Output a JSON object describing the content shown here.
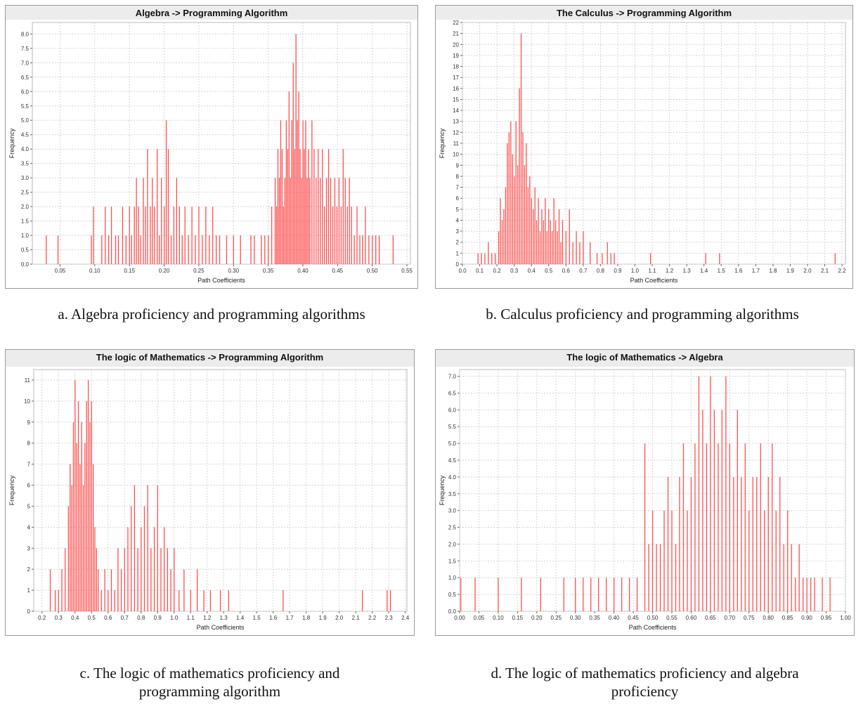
{
  "chart_data": [
    {
      "type": "bar",
      "title": "Algebra -> Programming Algorithm",
      "xlabel": "Path Coefficients",
      "ylabel": "Frequency",
      "xlim": [
        0.01,
        0.555
      ],
      "ylim": [
        0,
        8.4
      ],
      "grid": true,
      "bar_color": "#ff5050",
      "x_ticks": [
        "0.05",
        "0.10",
        "0.15",
        "0.20",
        "0.25",
        "0.30",
        "0.35",
        "0.40",
        "0.45",
        "0.50",
        "0.55"
      ],
      "y_ticks": [
        "0.0",
        "0.5",
        "1.0",
        "1.5",
        "2.0",
        "2.5",
        "3.0",
        "3.5",
        "4.0",
        "4.5",
        "5.0",
        "5.5",
        "6.0",
        "6.5",
        "7.0",
        "7.5",
        "8.0"
      ],
      "x": [
        0.03,
        0.047,
        0.095,
        0.098,
        0.11,
        0.115,
        0.12,
        0.124,
        0.13,
        0.134,
        0.14,
        0.145,
        0.15,
        0.153,
        0.157,
        0.16,
        0.163,
        0.166,
        0.17,
        0.173,
        0.176,
        0.18,
        0.183,
        0.186,
        0.19,
        0.193,
        0.196,
        0.2,
        0.203,
        0.206,
        0.21,
        0.214,
        0.218,
        0.222,
        0.226,
        0.23,
        0.235,
        0.24,
        0.245,
        0.25,
        0.255,
        0.26,
        0.265,
        0.27,
        0.275,
        0.28,
        0.29,
        0.3,
        0.31,
        0.325,
        0.33,
        0.34,
        0.345,
        0.35,
        0.355,
        0.36,
        0.362,
        0.364,
        0.366,
        0.368,
        0.37,
        0.372,
        0.374,
        0.376,
        0.378,
        0.38,
        0.382,
        0.384,
        0.386,
        0.388,
        0.39,
        0.392,
        0.394,
        0.396,
        0.398,
        0.4,
        0.402,
        0.404,
        0.406,
        0.408,
        0.41,
        0.413,
        0.416,
        0.419,
        0.422,
        0.425,
        0.428,
        0.431,
        0.434,
        0.437,
        0.44,
        0.443,
        0.446,
        0.449,
        0.452,
        0.455,
        0.458,
        0.461,
        0.464,
        0.467,
        0.47,
        0.474,
        0.478,
        0.482,
        0.486,
        0.49,
        0.495,
        0.5,
        0.505,
        0.51,
        0.53
      ],
      "values": [
        1,
        1,
        1,
        2,
        1,
        2,
        1,
        2,
        1,
        1,
        2,
        1,
        2,
        1,
        2,
        3,
        2,
        1,
        3,
        2,
        4,
        2,
        3,
        2,
        4,
        1,
        3,
        2,
        5,
        4,
        1,
        2,
        3,
        2,
        1,
        2,
        1,
        2,
        1,
        2,
        1,
        2,
        1,
        2,
        1,
        1,
        1,
        1,
        1,
        1,
        1,
        1,
        1,
        1,
        2,
        3,
        2,
        4,
        3,
        5,
        4,
        2,
        3,
        5,
        4,
        6,
        3,
        5,
        7,
        4,
        8,
        5,
        6,
        4,
        3,
        5,
        4,
        5,
        3,
        4,
        3,
        5,
        4,
        3,
        4,
        3,
        4,
        2,
        3,
        4,
        3,
        2,
        3,
        2,
        3,
        2,
        4,
        3,
        2,
        3,
        2,
        1,
        2,
        1,
        1,
        2,
        1,
        1,
        1,
        1,
        1
      ]
    },
    {
      "type": "bar",
      "title": "The Calculus  -> Programming Algorithm",
      "xlabel": "Path Coefficients",
      "ylabel": "Frequency",
      "xlim": [
        0,
        2.22
      ],
      "ylim": [
        0,
        22
      ],
      "grid": true,
      "bar_color": "#ff5050",
      "x_ticks": [
        "0.0",
        "0.1",
        "0.2",
        "0.3",
        "0.4",
        "0.5",
        "0.6",
        "0.7",
        "0.8",
        "0.9",
        "1.0",
        "1.1",
        "1.2",
        "1.3",
        "1.4",
        "1.5",
        "1.6",
        "1.7",
        "1.8",
        "1.9",
        "2.0",
        "2.1",
        "2.2"
      ],
      "y_ticks": [
        "0",
        "1",
        "2",
        "3",
        "4",
        "5",
        "6",
        "7",
        "8",
        "9",
        "10",
        "11",
        "12",
        "13",
        "14",
        "15",
        "16",
        "17",
        "18",
        "19",
        "20",
        "21",
        "22"
      ],
      "x": [
        0.09,
        0.11,
        0.13,
        0.15,
        0.17,
        0.19,
        0.21,
        0.22,
        0.23,
        0.24,
        0.25,
        0.26,
        0.27,
        0.28,
        0.29,
        0.3,
        0.31,
        0.32,
        0.33,
        0.34,
        0.35,
        0.36,
        0.37,
        0.38,
        0.39,
        0.4,
        0.41,
        0.42,
        0.43,
        0.44,
        0.45,
        0.46,
        0.47,
        0.48,
        0.49,
        0.5,
        0.51,
        0.52,
        0.53,
        0.54,
        0.55,
        0.56,
        0.57,
        0.58,
        0.6,
        0.62,
        0.64,
        0.66,
        0.68,
        0.7,
        0.74,
        0.78,
        0.81,
        0.84,
        0.86,
        0.88,
        1.09,
        1.41,
        1.49,
        2.16
      ],
      "values": [
        1,
        1,
        1,
        2,
        1,
        1,
        3,
        6,
        4,
        5,
        7,
        11,
        12,
        13,
        10,
        8,
        13,
        9,
        16,
        21,
        12,
        9,
        11,
        7,
        8,
        6,
        5,
        7,
        4,
        6,
        3,
        5,
        4,
        6,
        3,
        5,
        4,
        3,
        6,
        4,
        3,
        5,
        2,
        4,
        3,
        5,
        2,
        3,
        2,
        3,
        2,
        1,
        1,
        2,
        1,
        1,
        1,
        1,
        1,
        1
      ]
    },
    {
      "type": "bar",
      "title": "The logic of Mathematics -> Programming Algorithm",
      "xlabel": "Path Coefficients",
      "ylabel": "Frequency",
      "xlim": [
        0.15,
        2.41
      ],
      "ylim": [
        0,
        11.5
      ],
      "grid": true,
      "bar_color": "#ff5050",
      "x_ticks": [
        "0.2",
        "0.3",
        "0.4",
        "0.5",
        "0.6",
        "0.7",
        "0.8",
        "0.9",
        "1.0",
        "1.1",
        "1.2",
        "1.3",
        "1.4",
        "1.5",
        "1.6",
        "1.7",
        "1.8",
        "1.9",
        "2.0",
        "2.1",
        "2.2",
        "2.3",
        "2.4"
      ],
      "y_ticks": [
        "0",
        "1",
        "2",
        "3",
        "4",
        "5",
        "6",
        "7",
        "8",
        "9",
        "10",
        "11"
      ],
      "x": [
        0.25,
        0.28,
        0.3,
        0.32,
        0.34,
        0.36,
        0.37,
        0.38,
        0.39,
        0.4,
        0.41,
        0.42,
        0.43,
        0.44,
        0.45,
        0.46,
        0.47,
        0.48,
        0.49,
        0.5,
        0.51,
        0.52,
        0.53,
        0.54,
        0.56,
        0.58,
        0.6,
        0.62,
        0.64,
        0.66,
        0.68,
        0.7,
        0.72,
        0.74,
        0.76,
        0.78,
        0.8,
        0.82,
        0.84,
        0.86,
        0.88,
        0.9,
        0.92,
        0.94,
        0.96,
        0.98,
        1.0,
        1.03,
        1.06,
        1.1,
        1.14,
        1.18,
        1.22,
        1.28,
        1.33,
        1.66,
        2.14,
        2.29,
        2.31
      ],
      "values": [
        2,
        1,
        1,
        2,
        3,
        5,
        7,
        6,
        9,
        11,
        8,
        10,
        7,
        9,
        6,
        8,
        10,
        11,
        9,
        10,
        7,
        4,
        3,
        2,
        1,
        2,
        1,
        2,
        1,
        3,
        2,
        3,
        4,
        5,
        6,
        3,
        4,
        5,
        6,
        3,
        4,
        6,
        3,
        4,
        3,
        2,
        3,
        1,
        2,
        1,
        2,
        1,
        1,
        1,
        1,
        1,
        1,
        1,
        1
      ]
    },
    {
      "type": "bar",
      "title": "The logic of Mathematics -> Algebra",
      "xlabel": "Path Coefficients",
      "ylabel": "Frequency",
      "xlim": [
        0,
        1.0
      ],
      "ylim": [
        0,
        7.2
      ],
      "grid": true,
      "bar_color": "#ff5050",
      "x_ticks": [
        "0.00",
        "0.05",
        "0.10",
        "0.15",
        "0.20",
        "0.25",
        "0.30",
        "0.35",
        "0.40",
        "0.45",
        "0.50",
        "0.55",
        "0.60",
        "0.65",
        "0.70",
        "0.75",
        "0.80",
        "0.85",
        "0.90",
        "0.95",
        "1.00"
      ],
      "y_ticks": [
        "0.0",
        "0.5",
        "1.0",
        "1.5",
        "2.0",
        "2.5",
        "3.0",
        "3.5",
        "4.0",
        "4.5",
        "5.0",
        "5.5",
        "6.0",
        "6.5",
        "7.0"
      ],
      "x": [
        0.003,
        0.04,
        0.1,
        0.16,
        0.21,
        0.27,
        0.3,
        0.32,
        0.34,
        0.36,
        0.38,
        0.4,
        0.42,
        0.44,
        0.46,
        0.48,
        0.49,
        0.5,
        0.51,
        0.52,
        0.53,
        0.54,
        0.55,
        0.56,
        0.57,
        0.58,
        0.59,
        0.6,
        0.61,
        0.62,
        0.63,
        0.64,
        0.65,
        0.66,
        0.67,
        0.68,
        0.69,
        0.7,
        0.71,
        0.72,
        0.73,
        0.74,
        0.75,
        0.76,
        0.77,
        0.78,
        0.79,
        0.8,
        0.81,
        0.82,
        0.83,
        0.84,
        0.85,
        0.86,
        0.87,
        0.88,
        0.89,
        0.9,
        0.91,
        0.92,
        0.94,
        0.96
      ],
      "values": [
        1,
        1,
        1,
        1,
        1,
        1,
        1,
        1,
        1,
        1,
        1,
        1,
        1,
        1,
        1,
        5,
        2,
        3,
        2,
        2,
        3,
        4,
        3,
        2,
        4,
        5,
        3,
        4,
        5,
        7,
        6,
        5,
        7,
        6,
        5,
        6,
        7,
        5,
        4,
        6,
        4,
        5,
        3,
        4,
        4,
        5,
        3,
        4,
        5,
        3,
        4,
        2,
        3,
        2,
        1,
        2,
        1,
        1,
        1,
        1,
        1,
        1
      ]
    }
  ],
  "captions": {
    "a": "a. Algebra proficiency and programming algorithms",
    "b": "b. Calculus proficiency and programming algorithms",
    "c1": "c. The logic of mathematics proficiency and",
    "c2": "programming algorithm",
    "d1": "d. The logic of mathematics proficiency and algebra",
    "d2": "proficiency"
  }
}
